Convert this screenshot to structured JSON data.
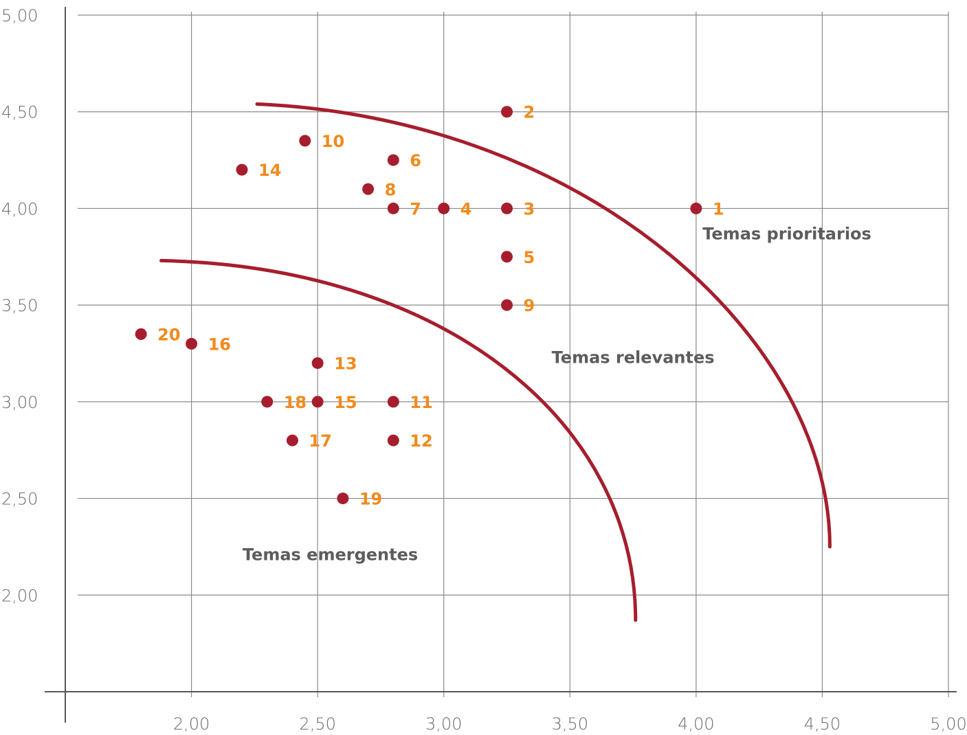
{
  "chart_data": {
    "type": "scatter",
    "title": "",
    "xlabel": "",
    "ylabel": "",
    "xlim": [
      1.5,
      5.0
    ],
    "ylim": [
      1.5,
      5.0
    ],
    "grid": true,
    "x_ticks": [
      "2,00",
      "2,50",
      "3,00",
      "3,50",
      "4,00",
      "4,50",
      "5,00"
    ],
    "x_tick_values": [
      2.0,
      2.5,
      3.0,
      3.5,
      4.0,
      4.5,
      5.0
    ],
    "y_ticks": [
      "2,00",
      "2,50",
      "3,00",
      "3,50",
      "4,00",
      "4,50",
      "5,00"
    ],
    "y_tick_values": [
      2.0,
      2.5,
      3.0,
      3.5,
      4.0,
      4.5,
      5.0
    ],
    "point_color": "#a61e2d",
    "label_color": "#f28a1b",
    "curve_color": "#a61e2d",
    "region_label_color": "#5c5c5c",
    "points": [
      {
        "label": "1",
        "x": 4.0,
        "y": 4.0
      },
      {
        "label": "2",
        "x": 3.25,
        "y": 4.5
      },
      {
        "label": "3",
        "x": 3.25,
        "y": 4.0
      },
      {
        "label": "4",
        "x": 3.0,
        "y": 4.0
      },
      {
        "label": "5",
        "x": 3.25,
        "y": 3.75
      },
      {
        "label": "6",
        "x": 2.8,
        "y": 4.25
      },
      {
        "label": "7",
        "x": 2.8,
        "y": 4.0
      },
      {
        "label": "8",
        "x": 2.7,
        "y": 4.1
      },
      {
        "label": "9",
        "x": 3.25,
        "y": 3.5
      },
      {
        "label": "10",
        "x": 2.45,
        "y": 4.35
      },
      {
        "label": "11",
        "x": 2.8,
        "y": 3.0
      },
      {
        "label": "12",
        "x": 2.8,
        "y": 2.8
      },
      {
        "label": "13",
        "x": 2.5,
        "y": 3.2
      },
      {
        "label": "14",
        "x": 2.2,
        "y": 4.2
      },
      {
        "label": "15",
        "x": 2.5,
        "y": 3.0
      },
      {
        "label": "16",
        "x": 2.0,
        "y": 3.3
      },
      {
        "label": "17",
        "x": 2.4,
        "y": 2.8
      },
      {
        "label": "18",
        "x": 2.3,
        "y": 3.0
      },
      {
        "label": "19",
        "x": 2.6,
        "y": 2.5
      },
      {
        "label": "20",
        "x": 1.8,
        "y": 3.35
      }
    ],
    "boundary_curves": [
      {
        "name": "relevantes-boundary",
        "from": [
          2.26,
          4.54
        ],
        "ctrl1": [
          3.6,
          4.46
        ],
        "ctrl2": [
          4.53,
          3.3
        ],
        "to": [
          4.53,
          2.25
        ]
      },
      {
        "name": "emergentes-boundary",
        "from": [
          1.88,
          3.73
        ],
        "ctrl1": [
          3.0,
          3.7
        ],
        "ctrl2": [
          3.76,
          2.9
        ],
        "to": [
          3.76,
          1.87
        ]
      }
    ],
    "region_labels": [
      {
        "text": "Temas prioritarios",
        "x": 4.36,
        "y": 3.84
      },
      {
        "text": "Temas relevantes",
        "x": 3.75,
        "y": 3.2
      },
      {
        "text": "Temas emergentes",
        "x": 2.55,
        "y": 2.18
      }
    ]
  }
}
